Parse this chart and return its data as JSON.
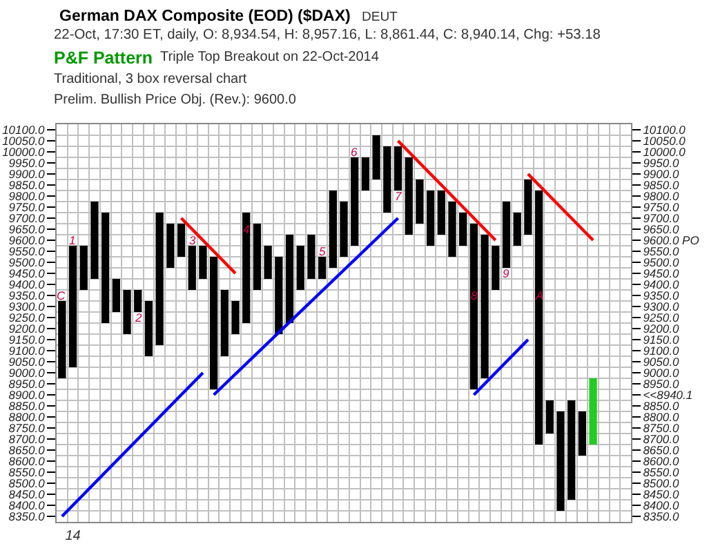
{
  "chart_data": {
    "type": "bar",
    "title": "German DAX Composite (EOD) ($DAX)",
    "annotations": [
      "DEUT",
      "22-Oct, 17:30 ET, daily, O: 8,934.54, H: 8,957.16, L: 8,861.44, C: 8,940.14, Chg: +53.18",
      "P&F Pattern",
      "Triple Top Breakout on 22-Oct-2014",
      "Traditional, 3 box reversal chart",
      "Prelim. Bullish Price Obj. (Rev.): 9600.0",
      "C",
      "1",
      "2",
      "3",
      "4",
      "5",
      "6",
      "7",
      "8",
      "9",
      "A"
    ],
    "categories": [
      null,
      "14",
      null,
      null,
      null,
      null,
      null,
      null,
      null,
      null,
      null,
      null,
      null,
      null,
      null,
      null,
      null,
      null,
      null,
      null,
      null,
      null,
      null,
      null,
      null,
      null,
      null,
      null,
      null,
      null,
      null,
      null,
      null,
      null,
      null,
      null,
      null,
      null,
      null,
      null,
      null,
      null,
      null,
      null,
      null,
      null,
      null,
      null,
      null,
      null,
      null,
      null,
      null
    ],
    "ylim": [
      8325,
      10125
    ],
    "yticks": [
      {
        "value": 8350,
        "label": "8350.0"
      },
      {
        "value": 8400,
        "label": "8400.0"
      },
      {
        "value": 8450,
        "label": "8450.0"
      },
      {
        "value": 8500,
        "label": "8500.0"
      },
      {
        "value": 8550,
        "label": "8550.0"
      },
      {
        "value": 8600,
        "label": "8600.0"
      },
      {
        "value": 8650,
        "label": "8650.0"
      },
      {
        "value": 8700,
        "label": "8700.0"
      },
      {
        "value": 8750,
        "label": "8750.0"
      },
      {
        "value": 8800,
        "label": "8800.0"
      },
      {
        "value": 8850,
        "label": "8850.0"
      },
      {
        "value": 8900,
        "label": "8900.0"
      },
      {
        "value": 8950,
        "label": "8950.0"
      },
      {
        "value": 9000,
        "label": "9000.0"
      },
      {
        "value": 9050,
        "label": "9050.0"
      },
      {
        "value": 9100,
        "label": "9100.0"
      },
      {
        "value": 9150,
        "label": "9150.0"
      },
      {
        "value": 9200,
        "label": "9200.0"
      },
      {
        "value": 9250,
        "label": "9250.0"
      },
      {
        "value": 9300,
        "label": "9300.0"
      },
      {
        "value": 9350,
        "label": "9350.0"
      },
      {
        "value": 9400,
        "label": "9400.0"
      },
      {
        "value": 9450,
        "label": "9450.0"
      },
      {
        "value": 9500,
        "label": "9500.0"
      },
      {
        "value": 9550,
        "label": "9550.0"
      },
      {
        "value": 9600,
        "label": "9600.0"
      },
      {
        "value": 9650,
        "label": "9650.0"
      },
      {
        "value": 9700,
        "label": "9700.0"
      },
      {
        "value": 9750,
        "label": "9750.0"
      },
      {
        "value": 9800,
        "label": "9800.0"
      },
      {
        "value": 9850,
        "label": "9850.0"
      },
      {
        "value": 9900,
        "label": "9900.0"
      },
      {
        "value": 9950,
        "label": "9950.0"
      },
      {
        "value": 10000,
        "label": "10000.0"
      },
      {
        "value": 10050,
        "label": "10050.0"
      },
      {
        "value": 10100,
        "label": "10100.0"
      }
    ],
    "y2lim": [
      8325,
      10125
    ],
    "y2ticks": [
      {
        "value": 8350,
        "label": "8350.0"
      },
      {
        "value": 8400,
        "label": "8400.0"
      },
      {
        "value": 8450,
        "label": "8450.0"
      },
      {
        "value": 8500,
        "label": "8500.0"
      },
      {
        "value": 8550,
        "label": "8550.0"
      },
      {
        "value": 8600,
        "label": "8600.0"
      },
      {
        "value": 8650,
        "label": "8650.0"
      },
      {
        "value": 8700,
        "label": "8700.0"
      },
      {
        "value": 8750,
        "label": "8750.0"
      },
      {
        "value": 8800,
        "label": "8800.0"
      },
      {
        "value": 8850,
        "label": "8850.0"
      },
      {
        "value": 8900,
        "label": "<<8940.1"
      },
      {
        "value": 8950,
        "label": "8950.0"
      },
      {
        "value": 9000,
        "label": "9000.0"
      },
      {
        "value": 9050,
        "label": "9050.0"
      },
      {
        "value": 9100,
        "label": "9100.0"
      },
      {
        "value": 9150,
        "label": "9150.0"
      },
      {
        "value": 9200,
        "label": "9200.0"
      },
      {
        "value": 9250,
        "label": "9250.0"
      },
      {
        "value": 9300,
        "label": "9300.0"
      },
      {
        "value": 9350,
        "label": "9350.0"
      },
      {
        "value": 9400,
        "label": "9400.0"
      },
      {
        "value": 9450,
        "label": "9450.0"
      },
      {
        "value": 9500,
        "label": "9500.0"
      },
      {
        "value": 9550,
        "label": "9550.0"
      },
      {
        "value": 9600,
        "label": "9600.0 PO"
      },
      {
        "value": 9650,
        "label": "9650.0"
      },
      {
        "value": 9700,
        "label": "9700.0"
      },
      {
        "value": 9750,
        "label": "9750.0"
      },
      {
        "value": 9800,
        "label": "9800.0"
      },
      {
        "value": 9850,
        "label": "9850.0"
      },
      {
        "value": 9900,
        "label": "9900.0"
      },
      {
        "value": 9950,
        "label": "9950.0"
      },
      {
        "value": 10000,
        "label": "10000.0"
      },
      {
        "value": 10050,
        "label": "10050.0"
      },
      {
        "value": 10100,
        "label": "10100.0"
      }
    ],
    "grid": true,
    "series": [
      {
        "color": "#000000",
        "values": [
          null,
          550,
          null,
          350,
          null,
          150,
          null,
          100,
          null,
          600,
          null,
          150,
          null,
          150,
          null,
          300,
          null,
          500,
          null,
          150,
          null,
          400,
          null,
          200,
          null,
          350,
          null,
          400,
          null,
          200,
          null,
          200,
          null,
          200,
          null,
          200,
          null,
          150,
          null,
          650,
          null,
          300,
          null,
          250,
          null,
          150,
          null,
          450,
          null,
          null,
          null,
          null,
          null
        ],
        "base": [
          null,
          9025,
          null,
          9425,
          null,
          9275,
          null,
          9275,
          null,
          9125,
          null,
          9525,
          null,
          9425,
          null,
          9075,
          null,
          9225,
          null,
          9425,
          null,
          9225,
          null,
          9425,
          null,
          9475,
          null,
          9575,
          null,
          9875,
          null,
          9825,
          null,
          9675,
          null,
          9625,
          null,
          9575,
          null,
          8975,
          null,
          9475,
          null,
          9625,
          null,
          8725,
          null,
          8425,
          null,
          null,
          null,
          null,
          null
        ]
      },
      {
        "color": "#000000",
        "values": [
          350,
          null,
          200,
          null,
          500,
          null,
          200,
          null,
          250,
          null,
          200,
          null,
          200,
          null,
          600,
          null,
          150,
          null,
          300,
          null,
          350,
          null,
          200,
          null,
          100,
          null,
          250,
          null,
          150,
          null,
          300,
          null,
          350,
          null,
          250,
          null,
          250,
          null,
          750,
          null,
          200,
          null,
          150,
          null,
          1150,
          null,
          450,
          null,
          200,
          null,
          null,
          null,
          null
        ],
        "base": [
          8975,
          null,
          9375,
          null,
          9225,
          null,
          9175,
          null,
          9075,
          null,
          9475,
          null,
          9375,
          null,
          8925,
          null,
          9175,
          null,
          9375,
          null,
          9175,
          null,
          9375,
          null,
          9425,
          null,
          9525,
          null,
          9825,
          null,
          9725,
          null,
          9625,
          null,
          9575,
          null,
          9525,
          null,
          8925,
          null,
          9375,
          null,
          9575,
          null,
          8675,
          null,
          8375,
          null,
          8625,
          null,
          null,
          null,
          null
        ]
      },
      {
        "color": "#22cc22",
        "values": [
          null,
          null,
          null,
          null,
          null,
          null,
          null,
          null,
          null,
          null,
          null,
          null,
          null,
          null,
          null,
          null,
          null,
          null,
          null,
          null,
          null,
          null,
          null,
          null,
          null,
          null,
          null,
          null,
          null,
          null,
          null,
          null,
          null,
          null,
          null,
          null,
          null,
          null,
          null,
          null,
          null,
          null,
          null,
          null,
          null,
          null,
          null,
          null,
          null,
          300,
          null,
          null,
          null
        ],
        "base": [
          null,
          null,
          null,
          null,
          null,
          null,
          null,
          null,
          null,
          null,
          null,
          null,
          null,
          null,
          null,
          null,
          null,
          null,
          null,
          null,
          null,
          null,
          null,
          null,
          null,
          null,
          null,
          null,
          null,
          null,
          null,
          null,
          null,
          null,
          null,
          null,
          null,
          null,
          null,
          null,
          null,
          null,
          null,
          null,
          null,
          null,
          null,
          null,
          null,
          8675,
          null,
          null,
          null
        ]
      },
      {
        "type": "line",
        "line_style": "solid",
        "color": "#0000ff",
        "values": [
          8350,
          null,
          null,
          null,
          null,
          null,
          null,
          null,
          null,
          null,
          null,
          null,
          null,
          9000,
          null,
          null,
          null,
          null,
          null,
          null,
          null,
          null,
          null,
          null,
          null,
          null,
          null,
          null,
          null,
          null,
          null,
          null,
          null,
          null,
          null,
          null,
          null,
          null,
          null,
          null,
          null,
          null,
          null,
          null,
          null,
          null,
          null,
          null,
          null,
          null,
          null,
          null,
          null
        ]
      },
      {
        "type": "line",
        "line_style": "solid",
        "color": "#0000ff",
        "values": [
          null,
          null,
          null,
          null,
          null,
          null,
          null,
          null,
          null,
          null,
          null,
          null,
          null,
          null,
          8900,
          null,
          null,
          null,
          null,
          null,
          null,
          null,
          null,
          null,
          null,
          null,
          null,
          null,
          null,
          null,
          null,
          9700,
          null,
          null,
          null,
          null,
          null,
          null,
          null,
          null,
          null,
          null,
          null,
          null,
          null,
          null,
          null,
          null,
          null,
          null,
          null,
          null,
          null
        ]
      },
      {
        "type": "line",
        "line_style": "solid",
        "color": "#0000ff",
        "values": [
          null,
          null,
          null,
          null,
          null,
          null,
          null,
          null,
          null,
          null,
          null,
          null,
          null,
          null,
          null,
          null,
          null,
          null,
          null,
          null,
          null,
          null,
          null,
          null,
          null,
          null,
          null,
          null,
          null,
          null,
          null,
          null,
          null,
          null,
          null,
          null,
          null,
          null,
          8900,
          null,
          null,
          null,
          null,
          9150,
          null,
          null,
          null,
          null,
          null,
          null,
          null,
          null,
          null
        ]
      },
      {
        "type": "line",
        "line_style": "solid",
        "color": "#ff0000",
        "values": [
          null,
          null,
          null,
          null,
          null,
          null,
          null,
          null,
          null,
          null,
          null,
          9700,
          null,
          null,
          null,
          null,
          9450,
          null,
          null,
          null,
          null,
          null,
          null,
          null,
          null,
          null,
          null,
          null,
          null,
          null,
          null,
          null,
          null,
          null,
          null,
          null,
          null,
          null,
          null,
          null,
          null,
          null,
          null,
          null,
          null,
          null,
          null,
          null,
          null,
          null,
          null,
          null,
          null
        ]
      },
      {
        "type": "line",
        "line_style": "solid",
        "color": "#ff0000",
        "values": [
          null,
          null,
          null,
          null,
          null,
          null,
          null,
          null,
          null,
          null,
          null,
          null,
          null,
          null,
          null,
          null,
          null,
          null,
          null,
          null,
          null,
          null,
          null,
          null,
          null,
          null,
          null,
          null,
          null,
          null,
          null,
          10050,
          null,
          null,
          null,
          null,
          null,
          null,
          null,
          null,
          9600,
          null,
          null,
          null,
          null,
          null,
          null,
          null,
          null,
          null,
          null,
          null,
          null
        ]
      },
      {
        "type": "line",
        "line_style": "solid",
        "color": "#ff0000",
        "values": [
          null,
          null,
          null,
          null,
          null,
          null,
          null,
          null,
          null,
          null,
          null,
          null,
          null,
          null,
          null,
          null,
          null,
          null,
          null,
          null,
          null,
          null,
          null,
          null,
          null,
          null,
          null,
          null,
          null,
          null,
          null,
          null,
          null,
          null,
          null,
          null,
          null,
          null,
          null,
          null,
          null,
          null,
          null,
          9900,
          null,
          null,
          null,
          null,
          null,
          9600,
          null,
          null,
          null
        ]
      }
    ]
  }
}
